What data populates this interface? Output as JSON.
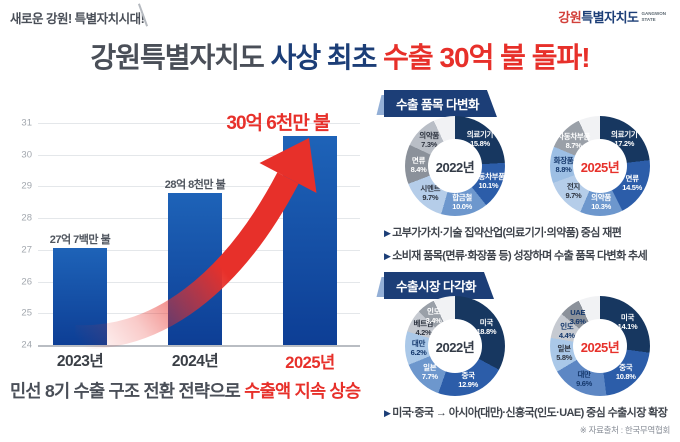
{
  "header": {
    "tagline": "새로운 강원! 특별자치시대!",
    "logo": {
      "brand_red": "강원",
      "brand_navy": "특별자치도",
      "sub1": "GANGWON",
      "sub2": "STATE"
    }
  },
  "title": {
    "part_gray": "강원특별자치도",
    "part_navy": "사상 최초",
    "part_red": "수출 30억 불 돌파!"
  },
  "strategy": {
    "part_gray": "민선 8기 수출 구조 전환 전략으로",
    "part_red": "수출액 지속 상승"
  },
  "source": "※ 자료출처 : 한국무역협회",
  "sections": [
    {
      "title": "수출 품목 다변화",
      "bullets": [
        "고부가가치·기술 집약산업(의료기기·의약품) 중심 재편",
        "소비재 품목(면류·화장품 등) 성장하며 수출 품목 다변화 추세"
      ]
    },
    {
      "title": "수출시장 다각화",
      "bullets": [
        "미국·중국 → 아시아(대만)·신흥국(인도·UAE) 중심 수출시장 확장"
      ]
    }
  ],
  "colors": {
    "navy": "#1c3e77",
    "red": "#e7302a",
    "gray_text": "#4a4f58",
    "bar_top": "#1e63b8",
    "bar_bottom": "#0d3e95"
  },
  "chart_data": [
    {
      "type": "bar",
      "categories": [
        "2023년",
        "2024년",
        "2025년"
      ],
      "values": [
        27.07,
        28.8,
        30.6
      ],
      "bar_labels": [
        "27억 7백만 불",
        "28억 8천만 불",
        "30억 6천만 불"
      ],
      "ylim": [
        24,
        31
      ],
      "yticks": [
        24,
        25,
        26,
        27,
        28,
        29,
        30,
        31
      ],
      "highlight_index": 2,
      "grid": true,
      "legend": false
    },
    {
      "type": "pie",
      "center_label": "2022년",
      "center_color": "#333b47",
      "fill_fraction": 0.93,
      "rest_color": "#f1f2f4",
      "segments": [
        {
          "label": "의료기기",
          "pct": "15.8%",
          "value": 15.8,
          "color": "#173760"
        },
        {
          "label": "자동차부품",
          "pct": "10.1%",
          "value": 10.1,
          "color": "#2c5da9"
        },
        {
          "label": "합금철",
          "pct": "10.0%",
          "value": 10.0,
          "color": "#6d97cd"
        },
        {
          "label": "시멘트",
          "pct": "9.7%",
          "value": 9.7,
          "color": "#b5cde9"
        },
        {
          "label": "면류",
          "pct": "8.4%",
          "value": 8.4,
          "color": "#8b919a"
        },
        {
          "label": "의약품",
          "pct": "7.3%",
          "value": 7.3,
          "color": "#b9bec6"
        }
      ]
    },
    {
      "type": "pie",
      "center_label": "2025년",
      "center_color": "#e7302a",
      "fill_fraction": 0.93,
      "rest_color": "#f1f2f4",
      "segments": [
        {
          "label": "의료기기",
          "pct": "17.2%",
          "value": 17.2,
          "color": "#173760"
        },
        {
          "label": "면류",
          "pct": "14.5%",
          "value": 14.5,
          "color": "#2c5da9"
        },
        {
          "label": "의약품",
          "pct": "10.3%",
          "value": 10.3,
          "color": "#6d97cd"
        },
        {
          "label": "전지",
          "pct": "9.7%",
          "value": 9.7,
          "color": "#b5cde9"
        },
        {
          "label": "화장품",
          "pct": "8.8%",
          "value": 8.8,
          "color": "#9dbfe4",
          "highlight": true
        },
        {
          "label": "자동차부품",
          "pct": "8.7%",
          "value": 8.7,
          "color": "#9aa0a8"
        }
      ]
    },
    {
      "type": "pie",
      "center_label": "2022년",
      "center_color": "#333b47",
      "fill_fraction": 0.93,
      "rest_color": "#f1f2f4",
      "segments": [
        {
          "label": "미국",
          "pct": "18.8%",
          "value": 18.8,
          "color": "#173760"
        },
        {
          "label": "중국",
          "pct": "12.9%",
          "value": 12.9,
          "color": "#2c5da9"
        },
        {
          "label": "일본",
          "pct": "7.7%",
          "value": 7.7,
          "color": "#6d97cd"
        },
        {
          "label": "대만",
          "pct": "6.2%",
          "value": 6.2,
          "color": "#aac8e8",
          "highlight": true
        },
        {
          "label": "베트남",
          "pct": "4.2%",
          "value": 4.2,
          "color": "#c6cad1"
        },
        {
          "label": "인도",
          "pct": "3.4%",
          "value": 3.4,
          "color": "#9aa0a8"
        }
      ]
    },
    {
      "type": "pie",
      "center_label": "2025년",
      "center_color": "#e7302a",
      "fill_fraction": 0.93,
      "rest_color": "#f1f2f4",
      "segments": [
        {
          "label": "미국",
          "pct": "14.1%",
          "value": 14.1,
          "color": "#173760"
        },
        {
          "label": "중국",
          "pct": "10.8%",
          "value": 10.8,
          "color": "#2c5da9"
        },
        {
          "label": "대만",
          "pct": "9.6%",
          "value": 9.6,
          "color": "#5d87c4",
          "highlight": true
        },
        {
          "label": "일본",
          "pct": "5.8%",
          "value": 5.8,
          "color": "#aac8e8"
        },
        {
          "label": "인도",
          "pct": "4.4%",
          "value": 4.4,
          "color": "#c6cad1",
          "highlight": true
        },
        {
          "label": "UAE",
          "pct": "3.6%",
          "value": 3.6,
          "color": "#8b919a",
          "highlight": true
        }
      ]
    }
  ]
}
